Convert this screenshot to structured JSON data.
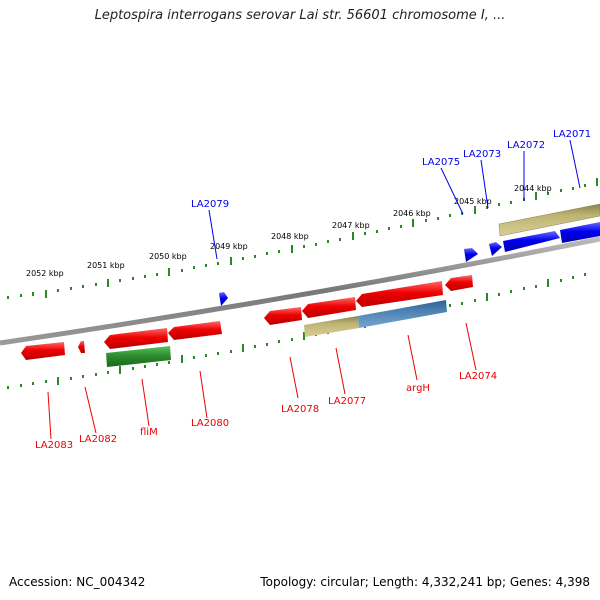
{
  "title": "Leptospira interrogans serovar Lai str. 56601 chromosome I, ...",
  "footer": {
    "accession": "Accession: NC_004342",
    "summary": "Topology: circular; Length: 4,332,241 bp; Genes: 4,398"
  },
  "colors": {
    "reverse_gene": "#ee0000",
    "forward_gene": "#0000ee",
    "green_gene": "#2a8a2a",
    "olive_gene": "#bdb373",
    "steel_gene": "#4a7fb0",
    "tick": "#2a8a2a",
    "backbone": "#888888"
  },
  "kbp_labels": [
    "2052 kbp",
    "2051 kbp",
    "2050 kbp",
    "2049 kbp",
    "2048 kbp",
    "2047 kbp",
    "2046 kbp",
    "2045 kbp",
    "2044 kbp"
  ],
  "top_labels": [
    "LA2079",
    "LA2075",
    "LA2073",
    "LA2072",
    "LA2071"
  ],
  "bottom_labels": [
    "LA2083",
    "LA2082",
    "fliM",
    "LA2080",
    "LA2078",
    "LA2077",
    "argH",
    "LA2074"
  ]
}
